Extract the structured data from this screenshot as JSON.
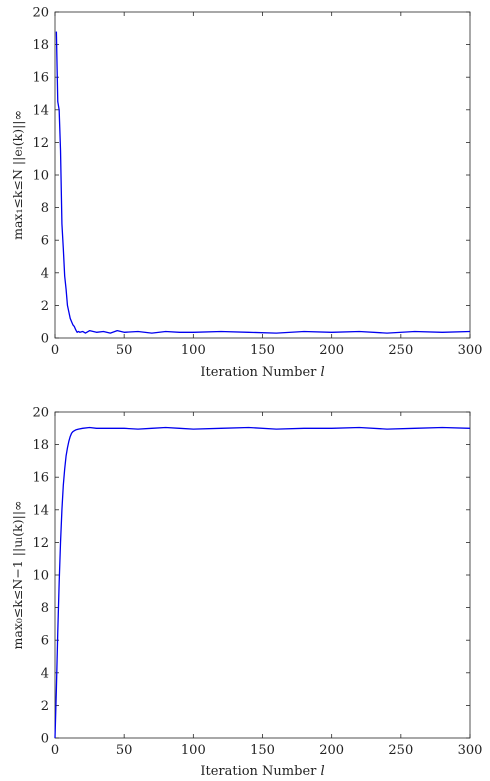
{
  "colors": {
    "series": "#0000ee",
    "axis": "#262626"
  },
  "chart_data": [
    {
      "type": "line",
      "xlabel_text": "Iteration Number ",
      "xlabel_var": "l",
      "ylabel": "max₁≤k≤N ||eₗ(k)||∞",
      "xlim": [
        0,
        300
      ],
      "ylim": [
        0,
        20
      ],
      "xticks": [
        0,
        50,
        100,
        150,
        200,
        250,
        300
      ],
      "yticks": [
        0,
        2,
        4,
        6,
        8,
        10,
        12,
        14,
        16,
        18,
        20
      ],
      "grid": false,
      "series": [
        {
          "x": [
            1,
            2,
            3,
            4,
            5,
            6,
            7,
            8,
            9,
            10,
            11,
            12,
            13,
            14,
            15,
            16,
            17,
            18,
            20,
            22,
            25,
            30,
            35,
            40,
            45,
            50,
            60,
            70,
            80,
            90,
            100,
            120,
            140,
            160,
            180,
            200,
            220,
            240,
            260,
            280,
            300
          ],
          "y": [
            18.8,
            14.5,
            14.0,
            11.5,
            7.0,
            5.5,
            3.8,
            3.0,
            2.0,
            1.6,
            1.2,
            1.0,
            0.8,
            0.7,
            0.5,
            0.35,
            0.4,
            0.35,
            0.4,
            0.3,
            0.45,
            0.35,
            0.4,
            0.3,
            0.45,
            0.35,
            0.4,
            0.3,
            0.4,
            0.35,
            0.35,
            0.4,
            0.35,
            0.3,
            0.4,
            0.35,
            0.4,
            0.3,
            0.4,
            0.35,
            0.4
          ]
        }
      ]
    },
    {
      "type": "line",
      "xlabel_text": "Iteration Number ",
      "xlabel_var": "l",
      "ylabel": "max₀≤k≤N−1 ||uₗ(k)||∞",
      "xlim": [
        0,
        300
      ],
      "ylim": [
        0,
        20
      ],
      "xticks": [
        0,
        50,
        100,
        150,
        200,
        250,
        300
      ],
      "yticks": [
        0,
        2,
        4,
        6,
        8,
        10,
        12,
        14,
        16,
        18,
        20
      ],
      "grid": false,
      "series": [
        {
          "x": [
            0,
            1,
            2,
            3,
            4,
            5,
            6,
            7,
            8,
            9,
            10,
            11,
            12,
            13,
            14,
            15,
            17,
            20,
            25,
            30,
            40,
            50,
            60,
            70,
            80,
            90,
            100,
            120,
            140,
            160,
            180,
            200,
            220,
            240,
            260,
            280,
            300
          ],
          "y": [
            0.0,
            3.0,
            6.5,
            9.5,
            12.0,
            14.0,
            15.5,
            16.5,
            17.3,
            17.8,
            18.2,
            18.5,
            18.7,
            18.8,
            18.85,
            18.9,
            18.95,
            19.0,
            19.05,
            19.0,
            19.0,
            19.0,
            18.95,
            19.0,
            19.05,
            19.0,
            18.95,
            19.0,
            19.05,
            18.95,
            19.0,
            19.0,
            19.05,
            18.95,
            19.0,
            19.05,
            19.0
          ]
        }
      ]
    }
  ]
}
